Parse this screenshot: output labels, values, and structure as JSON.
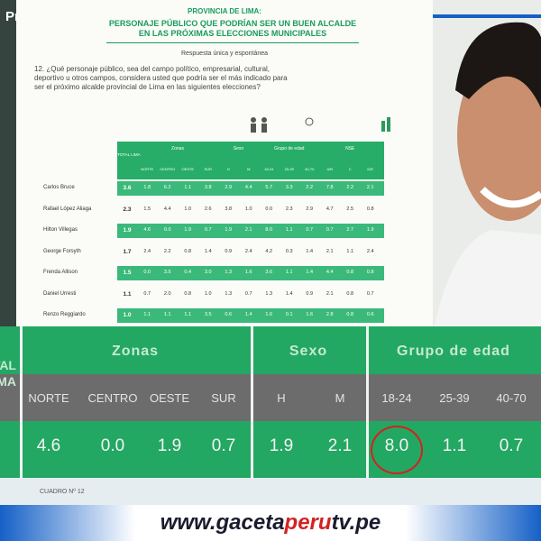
{
  "channel": {
    "label": "Primero"
  },
  "document": {
    "heading": "PROVINCIA DE LIMA:",
    "title": "PERSONAJE PÚBLICO QUE PODRÍAN SER UN BUEN ALCALDE EN LAS PRÓXIMAS ELECCIONES MUNICIPALES",
    "note": "Respuesta única y espontánea",
    "question": "12. ¿Qué personaje público, sea del campo político, empresarial, cultural, deportivo u otros campos, considera usted que podría ser el más indicado para ser el próximo alcalde provincial de Lima en las siguientes elecciones?",
    "table": {
      "total_header": "TOTAL LIMA",
      "groups": [
        "Zonas",
        "Sexo",
        "Grupo de edad",
        "NSE"
      ],
      "columns": [
        "NORTE",
        "CENTRO",
        "OESTE",
        "SUR",
        "H",
        "M",
        "18-24",
        "25-39",
        "40-70",
        "A/B",
        "C",
        "D/E"
      ],
      "rows": [
        {
          "name": "Carlos Bruce",
          "values": [
            "3.6",
            "1.8",
            "6.2",
            "1.1",
            "3.8",
            "2.9",
            "4.4",
            "5.7",
            "3.3",
            "2.2",
            "7.8",
            "2.2",
            "2.1"
          ]
        },
        {
          "name": "Rafael López Aliaga",
          "values": [
            "2.3",
            "1.5",
            "4.4",
            "1.0",
            "2.6",
            "3.8",
            "1.0",
            "0.0",
            "2.3",
            "2.9",
            "4.7",
            "2.5",
            "0.8"
          ]
        },
        {
          "name": "Hilton Villegas",
          "values": [
            "1.9",
            "4.6",
            "0.0",
            "1.9",
            "0.7",
            "1.9",
            "2.1",
            "8.0",
            "1.1",
            "0.7",
            "0.7",
            "2.7",
            "1.9"
          ]
        },
        {
          "name": "George Forsyth",
          "values": [
            "1.7",
            "2.4",
            "2.2",
            "0.8",
            "1.4",
            "0.9",
            "2.4",
            "4.2",
            "0.3",
            "1.4",
            "2.1",
            "1.1",
            "2.4"
          ]
        },
        {
          "name": "Frenda Allison",
          "values": [
            "1.5",
            "0.0",
            "3.5",
            "0.4",
            "3.0",
            "1.3",
            "1.6",
            "3.6",
            "1.1",
            "1.4",
            "4.4",
            "0.8",
            "0.8"
          ]
        },
        {
          "name": "Daniel Urresti",
          "values": [
            "1.1",
            "0.7",
            "2.0",
            "0.8",
            "1.0",
            "1.3",
            "0.7",
            "1.3",
            "1.4",
            "0.9",
            "2.1",
            "0.8",
            "0.7"
          ]
        },
        {
          "name": "Renzo Reggiardo",
          "values": [
            "1.0",
            "1.1",
            "1.1",
            "1.1",
            "3.5",
            "0.6",
            "1.4",
            "1.6",
            "0.1",
            "1.6",
            "2.8",
            "0.8",
            "0.6"
          ]
        }
      ]
    },
    "footer": "CUADRO Nº 12"
  },
  "zoom": {
    "total_header": [
      "TOTAL",
      "LIMA"
    ],
    "groups": [
      "Zonas",
      "Sexo",
      "Grupo de edad"
    ],
    "columns": [
      "NORTE",
      "CENTRO",
      "OESTE",
      "SUR",
      "H",
      "M",
      "18-24",
      "25-39",
      "40-70"
    ],
    "values": [
      "4.6",
      "0.0",
      "1.9",
      "0.7",
      "1.9",
      "2.1",
      "8.0",
      "1.1",
      "0.7"
    ],
    "circled": 6
  },
  "website": {
    "prefix": "www.gaceta",
    "brand": "peru",
    "suffix": "tv.pe"
  }
}
